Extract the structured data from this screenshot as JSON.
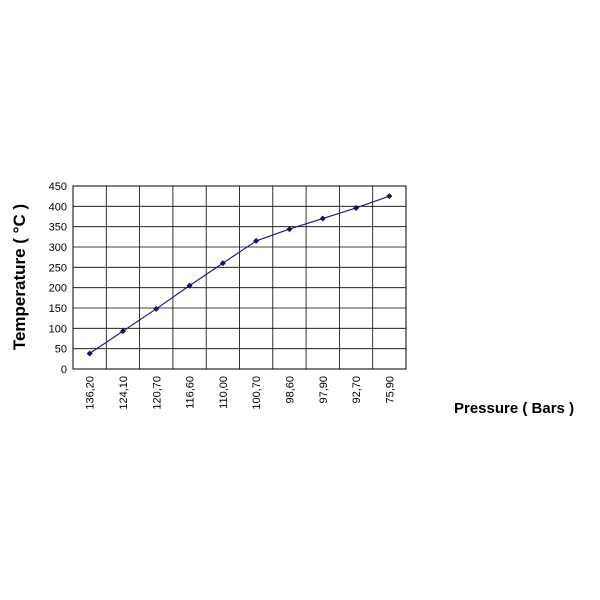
{
  "chart_data": {
    "type": "line",
    "title": "",
    "xlabel": "Pressure ( Bars )",
    "ylabel": "Temperature ( °C )",
    "categories": [
      "136,20",
      "124,10",
      "120,70",
      "116,60",
      "110,00",
      "100,70",
      "98,60",
      "97,90",
      "92,70",
      "75,90"
    ],
    "series": [
      {
        "values": [
          38,
          93,
          148,
          205,
          260,
          315,
          344,
          370,
          396,
          425
        ]
      }
    ],
    "ylim": [
      0,
      450
    ],
    "yticks": [
      "0",
      "50",
      "100",
      "150",
      "200",
      "250",
      "300",
      "350",
      "400",
      "450"
    ],
    "grid": true,
    "legend": "none",
    "line_color": "#1f1f7a",
    "marker_color": "#14145a"
  }
}
